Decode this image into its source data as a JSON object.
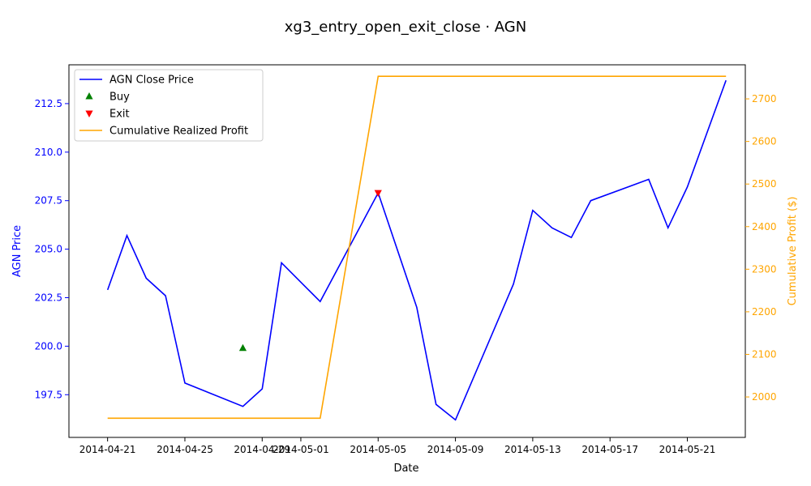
{
  "chart_data": {
    "type": "line",
    "title": "xg3_entry_open_exit_close · AGN",
    "xlabel": "Date",
    "ylabel_left": "AGN Price",
    "ylabel_right": "Cumulative Profit ($)",
    "x_ticks": [
      "2014-04-21",
      "2014-04-25",
      "2014-04-29",
      "2014-05-01",
      "2014-05-05",
      "2014-05-09",
      "2014-05-13",
      "2014-05-17",
      "2014-05-21"
    ],
    "y_left_ticks": [
      "197.5",
      "200.0",
      "202.5",
      "205.0",
      "207.5",
      "210.0",
      "212.5"
    ],
    "y_right_ticks": [
      "2000",
      "2100",
      "2200",
      "2300",
      "2400",
      "2500",
      "2600",
      "2700"
    ],
    "y_left_range": [
      195.3,
      214.5
    ],
    "y_right_range": [
      1905,
      2780
    ],
    "x_range": [
      "2014-04-19",
      "2014-05-24"
    ],
    "grid": false,
    "legend_position": "top-left",
    "colors": {
      "price": "#0000ff",
      "profit": "#ffa500",
      "buy": "#008000",
      "exit": "#ff0000"
    },
    "series": [
      {
        "name": "AGN Close Price",
        "axis": "left",
        "points": [
          [
            "2014-04-21",
            202.9
          ],
          [
            "2014-04-22",
            205.7
          ],
          [
            "2014-04-23",
            203.5
          ],
          [
            "2014-04-24",
            202.6
          ],
          [
            "2014-04-25",
            198.1
          ],
          [
            "2014-04-28",
            196.9
          ],
          [
            "2014-04-29",
            197.8
          ],
          [
            "2014-04-30",
            204.3
          ],
          [
            "2014-05-02",
            202.3
          ],
          [
            "2014-05-05",
            207.9
          ],
          [
            "2014-05-07",
            202.0
          ],
          [
            "2014-05-08",
            197.0
          ],
          [
            "2014-05-09",
            196.2
          ],
          [
            "2014-05-12",
            203.2
          ],
          [
            "2014-05-13",
            207.0
          ],
          [
            "2014-05-14",
            206.1
          ],
          [
            "2014-05-15",
            205.6
          ],
          [
            "2014-05-16",
            207.5
          ],
          [
            "2014-05-19",
            208.6
          ],
          [
            "2014-05-20",
            206.1
          ],
          [
            "2014-05-21",
            208.2
          ],
          [
            "2014-05-23",
            213.7
          ]
        ]
      },
      {
        "name": "Buy",
        "axis": "left",
        "marker": "triangle-up",
        "points": [
          [
            "2014-04-28",
            199.9
          ]
        ]
      },
      {
        "name": "Exit",
        "axis": "left",
        "marker": "triangle-down",
        "points": [
          [
            "2014-05-05",
            207.9
          ]
        ]
      },
      {
        "name": "Cumulative Realized Profit",
        "axis": "right",
        "points": [
          [
            "2014-04-21",
            1950
          ],
          [
            "2014-05-02",
            1950
          ],
          [
            "2014-05-05",
            2753
          ],
          [
            "2014-05-23",
            2753
          ]
        ]
      }
    ]
  }
}
